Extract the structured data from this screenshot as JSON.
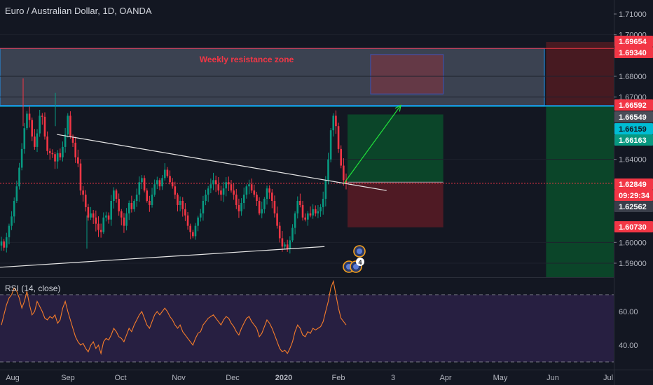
{
  "chart_data": {
    "type": "candlestick",
    "title": "Euro / Australian Dollar, 1D, OANDA",
    "price_axis_ticks": [
      "1.71000",
      "1.70000",
      "1.68000",
      "1.67000",
      "1.64000",
      "1.60000",
      "1.59000"
    ],
    "price_labels": [
      {
        "text": "1.69654",
        "value": 1.69654,
        "bg": "#f23645",
        "fg": "#ffffff"
      },
      {
        "text": "1.69340",
        "value": 1.6934,
        "bg": "#f23645",
        "fg": "#ffffff"
      },
      {
        "text": "1.66592",
        "value": 1.66592,
        "bg": "#f23645",
        "fg": "#ffffff"
      },
      {
        "text": "1.66549",
        "value": 1.66549,
        "bg": "#4a4e59",
        "fg": "#ffffff"
      },
      {
        "text": "1.66159",
        "value": 1.66159,
        "bg": "#00bcd4",
        "fg": "#131722"
      },
      {
        "text": "1.66163",
        "value": 1.66163,
        "bg": "#089981",
        "fg": "#ffffff"
      },
      {
        "text": "1.62849",
        "value": 1.62849,
        "bg": "#f23645",
        "fg": "#ffffff"
      },
      {
        "text": "09:29:34",
        "value": 1.627,
        "bg": "#f23645",
        "fg": "#ffffff"
      },
      {
        "text": "1.62562",
        "value": 1.62562,
        "bg": "#3a3e4a",
        "fg": "#ffffff"
      },
      {
        "text": "1.60730",
        "value": 1.6073,
        "bg": "#f23645",
        "fg": "#ffffff"
      }
    ],
    "time_axis_labels": [
      "Aug",
      "Sep",
      "Oct",
      "Nov",
      "Dec",
      "2020",
      "Feb",
      "3",
      "Apr",
      "May",
      "Jun",
      "Jul"
    ],
    "resistance_zone": {
      "label": "Weekly resistance zone",
      "top": 1.6934,
      "bottom": 1.66592
    },
    "horizontal_lines": [
      {
        "name": "zone-top",
        "value": 1.6934,
        "color": "#f23645"
      },
      {
        "name": "zone-bottom",
        "value": 1.66592,
        "color": "#2196f3"
      },
      {
        "name": "cyan-level",
        "value": 1.66549,
        "color": "#00bcd4"
      },
      {
        "name": "current-price",
        "value": 1.62849,
        "color": "#f23645",
        "dashed": true
      }
    ],
    "trendlines": [
      {
        "name": "descending-trendline",
        "from": {
          "x": "2019-08-26",
          "y": 1.652
        },
        "to": {
          "x": "2020-02-28",
          "y": 1.625
        }
      },
      {
        "name": "ascending-trendline",
        "from": {
          "x": "2019-07-24",
          "y": 1.588
        },
        "to": {
          "x": "2020-01-24",
          "y": 1.598
        }
      }
    ],
    "long_position": {
      "entry": 1.629,
      "target": 1.66163,
      "stop": 1.6073,
      "from": "2020-02-06",
      "to": "2020-03-31"
    },
    "far_position": {
      "entry": 1.66592,
      "target": 1.69654,
      "stop": 1.585,
      "from": "2020-05-28",
      "to": "2020-06-30"
    },
    "projection_arrow": {
      "from": {
        "x": "2020-02-04",
        "y": 1.6285
      },
      "to": {
        "x": "2020-03-07",
        "y": 1.666
      }
    },
    "target_box": {
      "x0": "2020-02-19",
      "x1": "2020-03-31",
      "y0": 1.6715,
      "y1": 1.6905
    },
    "event_badges": {
      "count": "4"
    },
    "candles_close": [
      1.6005,
      1.5975,
      1.6025,
      1.608,
      1.6125,
      1.62,
      1.627,
      1.636,
      1.645,
      1.655,
      1.662,
      1.659,
      1.651,
      1.646,
      1.6525,
      1.661,
      1.6605,
      1.651,
      1.644,
      1.643,
      1.6425,
      1.639,
      1.643,
      1.641,
      1.646,
      1.652,
      1.661,
      1.651,
      1.648,
      1.641,
      1.638,
      1.625,
      1.623,
      1.617,
      1.612,
      1.614,
      1.612,
      1.609,
      1.606,
      1.605,
      1.612,
      1.613,
      1.611,
      1.62,
      1.625,
      1.621,
      1.615,
      1.612,
      1.608,
      1.614,
      1.619,
      1.616,
      1.62,
      1.623,
      1.629,
      1.631,
      1.625,
      1.62,
      1.618,
      1.623,
      1.628,
      1.63,
      1.627,
      1.631,
      1.635,
      1.632,
      1.629,
      1.627,
      1.623,
      1.618,
      1.62,
      1.616,
      1.613,
      1.608,
      1.605,
      1.603,
      1.608,
      1.612,
      1.614,
      1.62,
      1.623,
      1.626,
      1.628,
      1.63,
      1.628,
      1.625,
      1.623,
      1.626,
      1.629,
      1.628,
      1.625,
      1.623,
      1.618,
      1.615,
      1.619,
      1.623,
      1.627,
      1.628,
      1.625,
      1.623,
      1.62,
      1.614,
      1.616,
      1.621,
      1.626,
      1.624,
      1.62,
      1.614,
      1.608,
      1.602,
      1.598,
      1.599,
      1.597,
      1.601,
      1.607,
      1.614,
      1.62,
      1.618,
      1.612,
      1.611,
      1.614,
      1.613,
      1.616,
      1.614,
      1.615,
      1.617,
      1.621,
      1.63,
      1.64,
      1.654,
      1.661,
      1.656,
      1.645,
      1.637,
      1.63,
      1.6285
    ],
    "rsi": {
      "label": "RSI (14, close)",
      "ticks": [
        "60.00",
        "40.00"
      ],
      "upper": 70,
      "lower": 30,
      "values": [
        52,
        58,
        64,
        68,
        70,
        74,
        72,
        68,
        62,
        66,
        72,
        64,
        58,
        60,
        66,
        63,
        60,
        56,
        55,
        57,
        56,
        58,
        53,
        55,
        62,
        66,
        60,
        55,
        50,
        45,
        42,
        40,
        41,
        38,
        36,
        40,
        42,
        38,
        40,
        35,
        42,
        44,
        43,
        46,
        50,
        48,
        45,
        44,
        42,
        46,
        50,
        48,
        52,
        55,
        58,
        60,
        56,
        52,
        50,
        54,
        58,
        60,
        58,
        60,
        62,
        60,
        57,
        55,
        52,
        50,
        52,
        48,
        46,
        44,
        42,
        40,
        44,
        47,
        48,
        52,
        54,
        56,
        57,
        58,
        56,
        54,
        52,
        55,
        57,
        56,
        53,
        51,
        48,
        46,
        50,
        53,
        56,
        57,
        54,
        52,
        50,
        45,
        47,
        51,
        55,
        53,
        50,
        46,
        42,
        38,
        36,
        37,
        35,
        38,
        42,
        48,
        52,
        50,
        46,
        45,
        48,
        47,
        50,
        49,
        50,
        51,
        54,
        60,
        66,
        74,
        78,
        70,
        62,
        56,
        54,
        52
      ]
    }
  }
}
